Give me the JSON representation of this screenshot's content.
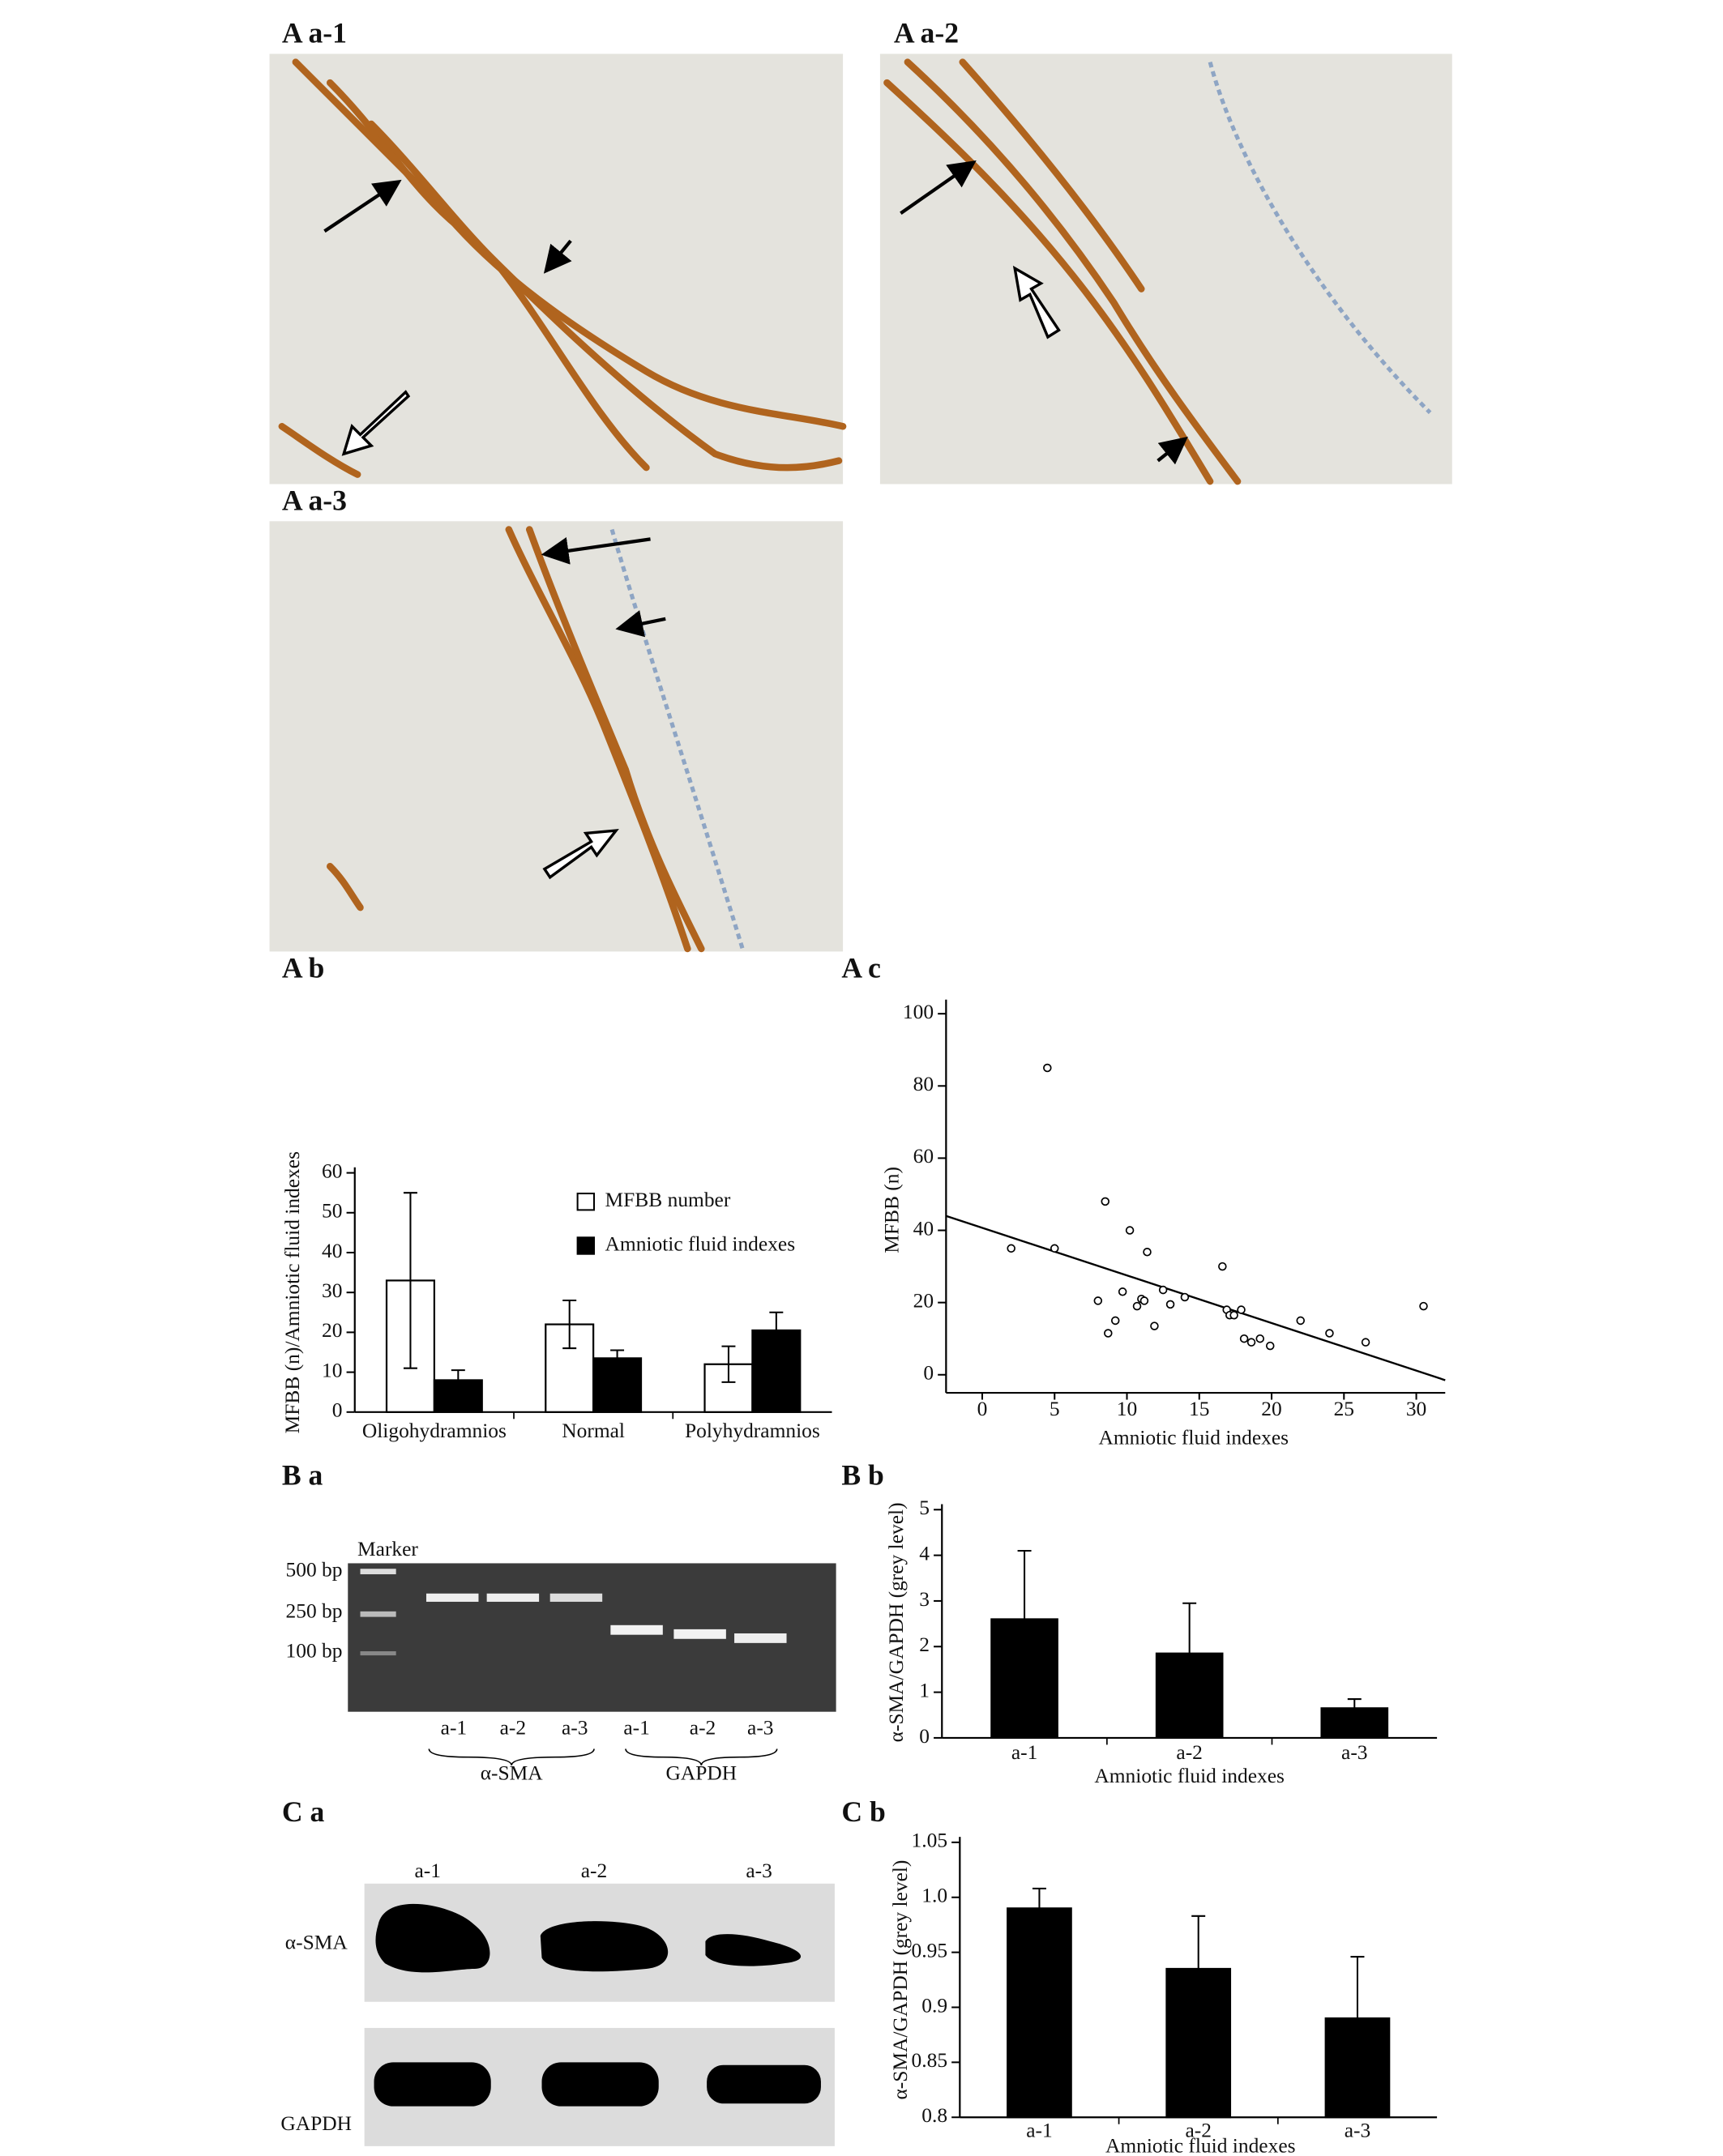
{
  "panel_labels": [
    "A a-1",
    "A a-2",
    "A a-3",
    "A b",
    "A c",
    "B a",
    "B b",
    "C a",
    "C b"
  ],
  "chart_data": [
    {
      "type": "bar",
      "ylabel": "MFBB (n)/Amniotic fluid indexes",
      "categories": [
        "Oligohydramnios",
        "Normal",
        "Polyhydramnios"
      ],
      "series": [
        {
          "name": "MFBB number",
          "color": "#ffffff",
          "values": [
            33,
            22,
            12
          ],
          "errors": [
            22,
            6,
            4.5
          ]
        },
        {
          "name": "Amniotic fluid indexes",
          "color": "#000000",
          "values": [
            8,
            13.5,
            20.5
          ],
          "errors": [
            2.5,
            2,
            4.5
          ]
        }
      ],
      "ylim": [
        0,
        60
      ],
      "yticks": [
        0,
        10,
        20,
        30,
        40,
        50,
        60
      ],
      "legend": "upper right"
    },
    {
      "type": "scatter",
      "xlabel": "Amniotic fluid indexes",
      "ylabel": "MFBB (n)",
      "x": [
        2,
        4.5,
        5,
        8,
        8.5,
        8.7,
        9.2,
        9.7,
        10.2,
        10.7,
        11,
        11.2,
        11.4,
        11.9,
        12.5,
        13,
        14,
        16.6,
        16.9,
        17.1,
        17.4,
        17.9,
        18.1,
        18.6,
        19.2,
        19.9,
        22,
        24,
        26.5,
        30.5
      ],
      "y": [
        35,
        85,
        35,
        20.5,
        48,
        11.5,
        15,
        23,
        40,
        19,
        21,
        20.5,
        34,
        13.5,
        23.5,
        19.5,
        21.5,
        30,
        18,
        16.5,
        16.5,
        18,
        10,
        9,
        10,
        8,
        15,
        11.5,
        9,
        19
      ],
      "trendline": {
        "x": [
          -2.5,
          32
        ],
        "y": [
          44,
          -1.5
        ]
      },
      "xlim": [
        -2.5,
        32
      ],
      "ylim": [
        -5,
        102
      ],
      "xticks": [
        0,
        5,
        10,
        15,
        20,
        25,
        30
      ],
      "yticks": [
        0,
        20,
        40,
        60,
        80,
        100
      ]
    },
    {
      "type": "bar",
      "xlabel": "Amniotic fluid indexes",
      "ylabel": "α-SMA/GAPDH (grey level)",
      "categories": [
        "a-1",
        "a-2",
        "a-3"
      ],
      "values": [
        2.6,
        1.85,
        0.65
      ],
      "errors": [
        1.5,
        1.1,
        0.2
      ],
      "color": "#000000",
      "ylim": [
        0,
        5
      ],
      "yticks": [
        0,
        1,
        2,
        3,
        4,
        5
      ]
    },
    {
      "type": "bar",
      "xlabel": "Amniotic fluid indexes",
      "ylabel": "α-SMA/GAPDH (grey level)",
      "categories": [
        "a-1",
        "a-2",
        "a-3"
      ],
      "values": [
        0.99,
        0.935,
        0.89
      ],
      "errors": [
        0.018,
        0.048,
        0.056
      ],
      "color": "#000000",
      "ylim": [
        0.8,
        1.05
      ],
      "yticks": [
        0.8,
        0.85,
        0.9,
        0.95,
        {
          "value": 1,
          "label": "1.0"
        },
        1.05
      ]
    }
  ],
  "gel": {
    "marker": "Marker",
    "sizes": [
      "500 bp",
      "250 bp",
      "100 bp"
    ],
    "lanes": [
      "a-1",
      "a-2",
      "a-3",
      "a-1",
      "a-2",
      "a-3"
    ],
    "groups": [
      "α-SMA",
      "GAPDH"
    ]
  },
  "blot": {
    "lanes": [
      "a-1",
      "a-2",
      "a-3"
    ],
    "rows": [
      "α-SMA",
      "GAPDH"
    ]
  }
}
